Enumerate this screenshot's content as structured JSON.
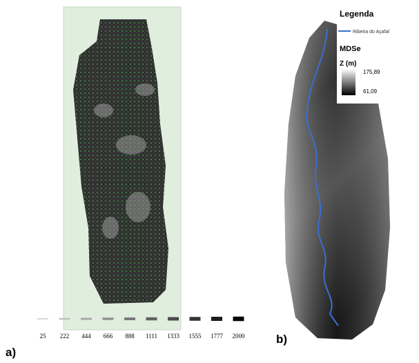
{
  "panel_a": {
    "label": "a)",
    "legend_values": [
      25,
      222,
      444,
      666,
      888,
      1111,
      1333,
      1555,
      1777,
      2000
    ]
  },
  "panel_b": {
    "label": "b)",
    "legend_title": "Legenda",
    "river": "Ribeira do Açafal",
    "layer": "MDSe",
    "unit": "Z (m)",
    "max": "175,89",
    "min": "61,09"
  }
}
